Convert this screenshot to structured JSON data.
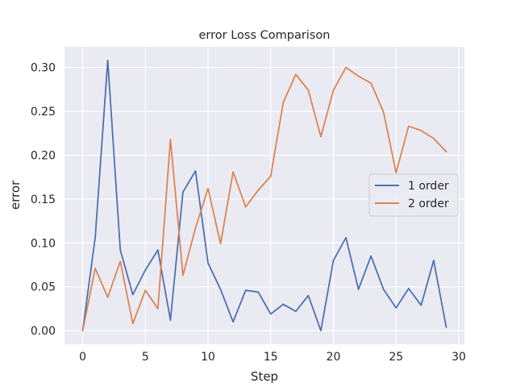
{
  "chart_data": {
    "type": "line",
    "title": "error Loss Comparison",
    "xlabel": "Step",
    "ylabel": "error",
    "xlim": [
      -1.45,
      30.45
    ],
    "ylim": [
      -0.0155,
      0.3235
    ],
    "xticks": [
      0,
      5,
      10,
      15,
      20,
      25,
      30
    ],
    "yticks": [
      0.0,
      0.05,
      0.1,
      0.15,
      0.2,
      0.25,
      0.3
    ],
    "ytick_labels": [
      "0.00",
      "0.05",
      "0.10",
      "0.15",
      "0.20",
      "0.25",
      "0.30"
    ],
    "grid": true,
    "legend_position": "center-right",
    "x": [
      0,
      1,
      2,
      3,
      4,
      5,
      6,
      7,
      8,
      9,
      10,
      11,
      12,
      13,
      14,
      15,
      16,
      17,
      18,
      19,
      20,
      21,
      22,
      23,
      24,
      25,
      26,
      27,
      28,
      29
    ],
    "series": [
      {
        "name": "1 order",
        "color": "#4c72b0",
        "values": [
          0.0,
          0.106,
          0.308,
          0.092,
          0.041,
          0.069,
          0.092,
          0.012,
          0.158,
          0.182,
          0.077,
          0.047,
          0.01,
          0.046,
          0.044,
          0.019,
          0.03,
          0.022,
          0.04,
          0.0,
          0.08,
          0.106,
          0.047,
          0.085,
          0.047,
          0.026,
          0.048,
          0.029,
          0.08,
          0.004
        ]
      },
      {
        "name": "2 order",
        "color": "#dd8452",
        "values": [
          0.0,
          0.071,
          0.038,
          0.079,
          0.008,
          0.046,
          0.025,
          0.218,
          0.063,
          0.117,
          0.162,
          0.099,
          0.181,
          0.141,
          0.16,
          0.176,
          0.26,
          0.292,
          0.274,
          0.221,
          0.274,
          0.3,
          0.29,
          0.282,
          0.249,
          0.18,
          0.233,
          0.228,
          0.219,
          0.204
        ]
      }
    ]
  }
}
